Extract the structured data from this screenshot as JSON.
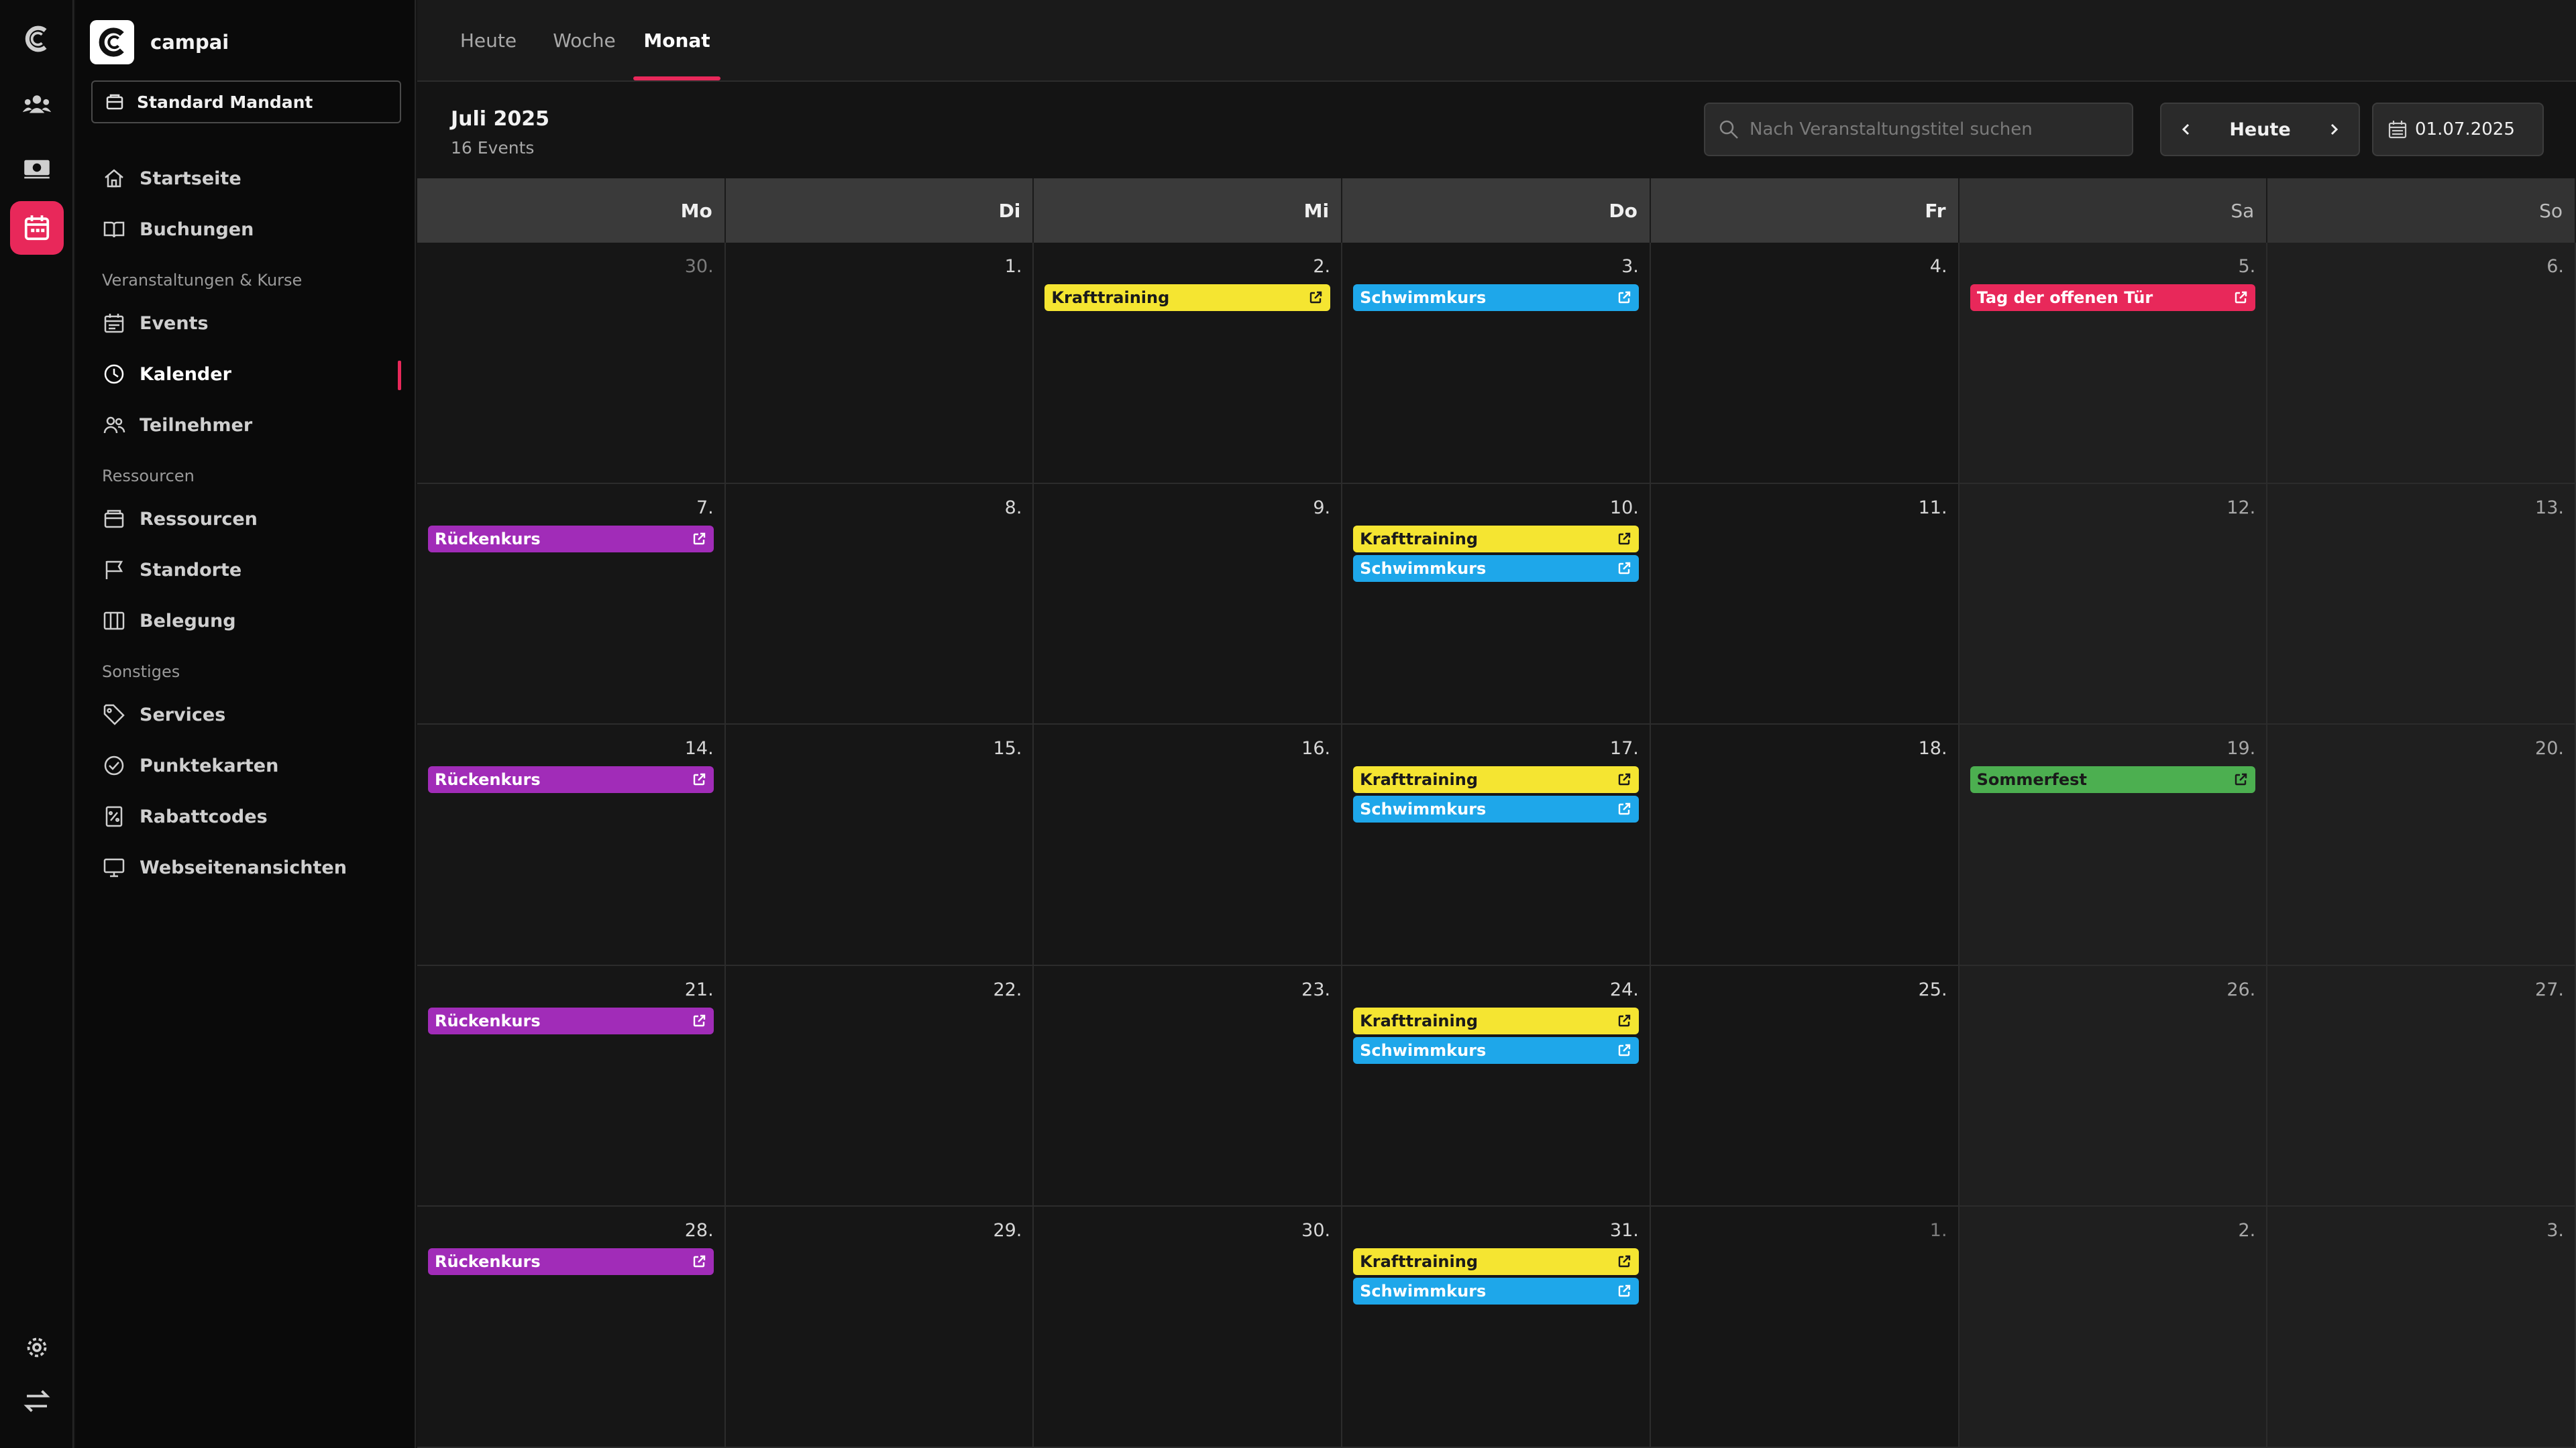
{
  "brand": {
    "name": "campai"
  },
  "mandant": {
    "label": "Standard Mandant"
  },
  "sidebar": {
    "items": [
      {
        "id": "startseite",
        "label": "Startseite",
        "icon": "home-icon"
      },
      {
        "id": "buchungen",
        "label": "Buchungen",
        "icon": "book-icon"
      },
      {
        "id": "events",
        "label": "Events",
        "icon": "calendar-icon"
      },
      {
        "id": "kalender",
        "label": "Kalender",
        "icon": "clock-icon",
        "active": true
      },
      {
        "id": "teilnehmer",
        "label": "Teilnehmer",
        "icon": "users-icon"
      },
      {
        "id": "ressourcen",
        "label": "Ressourcen",
        "icon": "box-icon"
      },
      {
        "id": "standorte",
        "label": "Standorte",
        "icon": "flag-icon"
      },
      {
        "id": "belegung",
        "label": "Belegung",
        "icon": "columns-icon"
      },
      {
        "id": "services",
        "label": "Services",
        "icon": "tag-icon"
      },
      {
        "id": "punktekarten",
        "label": "Punktekarten",
        "icon": "check-circle-icon"
      },
      {
        "id": "rabattcodes",
        "label": "Rabattcodes",
        "icon": "percent-icon"
      },
      {
        "id": "webseitenansichten",
        "label": "Webseitenansichten",
        "icon": "monitor-icon"
      }
    ],
    "sections": {
      "veranstaltungen": "Veranstaltungen & Kurse",
      "ressourcen": "Ressourcen",
      "sonstiges": "Sonstiges"
    }
  },
  "tabs": [
    {
      "label": "Heute"
    },
    {
      "label": "Woche"
    },
    {
      "label": "Monat",
      "active": true
    }
  ],
  "calendar": {
    "title": "Juli 2025",
    "count": "16 Events",
    "search_placeholder": "Nach Veranstaltungstitel suchen",
    "today_label": "Heute",
    "date_value": "01.07.2025",
    "weekdays": [
      "Mo",
      "Di",
      "Mi",
      "Do",
      "Fr",
      "Sa",
      "So"
    ],
    "weeks": [
      [
        {
          "day": "30.",
          "out": true,
          "events": []
        },
        {
          "day": "1.",
          "events": []
        },
        {
          "day": "2.",
          "events": [
            {
              "title": "Krafttraining",
              "color": "#f5e531",
              "text": "#1a1a1a"
            }
          ]
        },
        {
          "day": "3.",
          "events": [
            {
              "title": "Schwimmkurs",
              "color": "#1ea7ea",
              "text": "#ffffff"
            }
          ]
        },
        {
          "day": "4.",
          "events": []
        },
        {
          "day": "5.",
          "events": [
            {
              "title": "Tag der offenen Tür",
              "color": "#e8285a",
              "text": "#ffffff"
            }
          ]
        },
        {
          "day": "6.",
          "events": []
        }
      ],
      [
        {
          "day": "7.",
          "events": [
            {
              "title": "Rückenkurs",
              "color": "#a12cb8",
              "text": "#ffffff"
            }
          ]
        },
        {
          "day": "8.",
          "events": []
        },
        {
          "day": "9.",
          "events": []
        },
        {
          "day": "10.",
          "events": [
            {
              "title": "Krafttraining",
              "color": "#f5e531",
              "text": "#1a1a1a"
            },
            {
              "title": "Schwimmkurs",
              "color": "#1ea7ea",
              "text": "#ffffff"
            }
          ]
        },
        {
          "day": "11.",
          "events": []
        },
        {
          "day": "12.",
          "events": []
        },
        {
          "day": "13.",
          "events": []
        }
      ],
      [
        {
          "day": "14.",
          "events": [
            {
              "title": "Rückenkurs",
              "color": "#a12cb8",
              "text": "#ffffff"
            }
          ]
        },
        {
          "day": "15.",
          "events": []
        },
        {
          "day": "16.",
          "events": []
        },
        {
          "day": "17.",
          "events": [
            {
              "title": "Krafttraining",
              "color": "#f5e531",
              "text": "#1a1a1a"
            },
            {
              "title": "Schwimmkurs",
              "color": "#1ea7ea",
              "text": "#ffffff"
            }
          ]
        },
        {
          "day": "18.",
          "events": []
        },
        {
          "day": "19.",
          "events": [
            {
              "title": "Sommerfest",
              "color": "#4caf50",
              "text": "#1a1a1a"
            }
          ]
        },
        {
          "day": "20.",
          "events": []
        }
      ],
      [
        {
          "day": "21.",
          "events": [
            {
              "title": "Rückenkurs",
              "color": "#a12cb8",
              "text": "#ffffff"
            }
          ]
        },
        {
          "day": "22.",
          "events": []
        },
        {
          "day": "23.",
          "events": []
        },
        {
          "day": "24.",
          "events": [
            {
              "title": "Krafttraining",
              "color": "#f5e531",
              "text": "#1a1a1a"
            },
            {
              "title": "Schwimmkurs",
              "color": "#1ea7ea",
              "text": "#ffffff"
            }
          ]
        },
        {
          "day": "25.",
          "events": []
        },
        {
          "day": "26.",
          "events": []
        },
        {
          "day": "27.",
          "events": []
        }
      ],
      [
        {
          "day": "28.",
          "events": [
            {
              "title": "Rückenkurs",
              "color": "#a12cb8",
              "text": "#ffffff"
            }
          ]
        },
        {
          "day": "29.",
          "events": []
        },
        {
          "day": "30.",
          "events": []
        },
        {
          "day": "31.",
          "events": [
            {
              "title": "Krafttraining",
              "color": "#f5e531",
              "text": "#1a1a1a"
            },
            {
              "title": "Schwimmkurs",
              "color": "#1ea7ea",
              "text": "#ffffff"
            }
          ]
        },
        {
          "day": "1.",
          "out": true,
          "events": []
        },
        {
          "day": "2.",
          "out": true,
          "events": []
        },
        {
          "day": "3.",
          "out": true,
          "events": []
        }
      ]
    ]
  },
  "colors": {
    "accent": "#e8285a"
  }
}
